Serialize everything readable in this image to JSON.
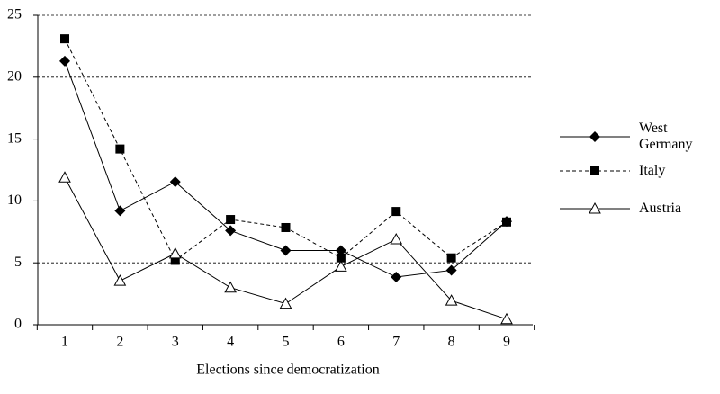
{
  "chart_data": {
    "type": "line",
    "x_label": "Elections since democratization",
    "categories": [
      "1",
      "2",
      "3",
      "4",
      "5",
      "6",
      "7",
      "8",
      "9"
    ],
    "ylim": [
      0,
      25
    ],
    "yticks": [
      0,
      5,
      10,
      15,
      20,
      25
    ],
    "grid": true,
    "series": [
      {
        "name": "West Germany",
        "color": "#000000",
        "line_style": "solid",
        "marker": "diamond",
        "values": [
          21.3,
          9.2,
          11.55,
          7.6,
          6.0,
          6.0,
          3.85,
          4.4,
          8.35
        ]
      },
      {
        "name": "Italy",
        "color": "#000000",
        "line_style": "dashed",
        "marker": "square",
        "values": [
          23.1,
          14.2,
          5.2,
          8.5,
          7.85,
          5.4,
          9.15,
          5.4,
          8.3
        ]
      },
      {
        "name": "Austria",
        "color": "#000000",
        "line_style": "solid",
        "marker": "triangle",
        "values": [
          11.9,
          3.55,
          5.75,
          3.0,
          1.7,
          4.7,
          6.9,
          1.95,
          0.45
        ]
      }
    ]
  }
}
